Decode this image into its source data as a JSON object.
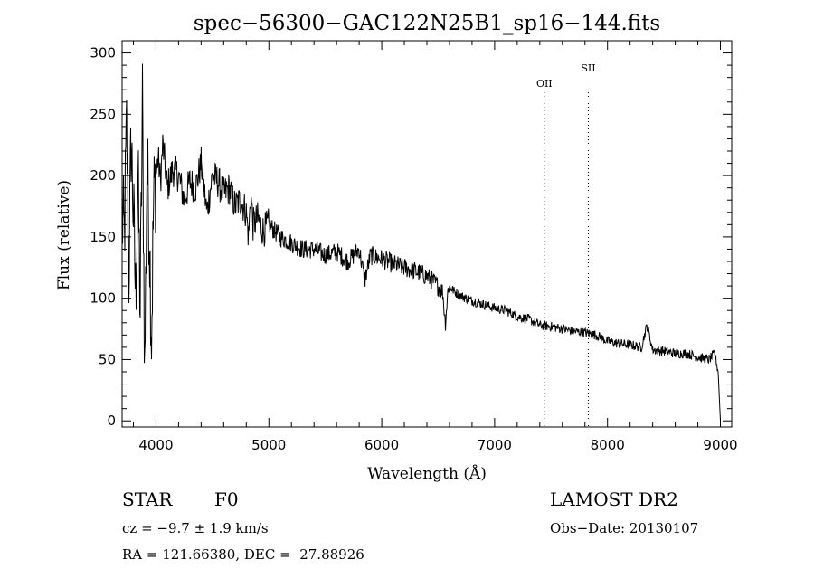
{
  "chart_data": {
    "type": "line",
    "title": "spec−56300−GAC122N25B1_sp16−144.fits",
    "xlabel": "Wavelength (Å)",
    "ylabel": "Flux (relative)",
    "xlim": [
      3700,
      9100
    ],
    "ylim": [
      -5,
      310
    ],
    "xticks": [
      4000,
      5000,
      6000,
      7000,
      8000,
      9000
    ],
    "xtick_labels": [
      "4000",
      "5000",
      "6000",
      "7000",
      "8000",
      "9000"
    ],
    "yticks": [
      0,
      50,
      100,
      150,
      200,
      250,
      300
    ],
    "ytick_labels": [
      "0",
      "50",
      "100",
      "150",
      "200",
      "250",
      "300"
    ],
    "line_markers": [
      {
        "label": "OII",
        "wavelength": 7440
      },
      {
        "label": "SII",
        "wavelength": 7830
      }
    ],
    "series": [
      {
        "name": "flux",
        "x": [
          3700,
          3720,
          3740,
          3760,
          3780,
          3800,
          3820,
          3840,
          3860,
          3880,
          3900,
          3920,
          3940,
          3960,
          3980,
          4000,
          4020,
          4040,
          4060,
          4080,
          4100,
          4150,
          4200,
          4250,
          4300,
          4350,
          4400,
          4450,
          4500,
          4550,
          4600,
          4650,
          4700,
          4750,
          4800,
          4820,
          4840,
          4860,
          4900,
          4950,
          5000,
          5100,
          5200,
          5300,
          5400,
          5500,
          5600,
          5700,
          5800,
          5850,
          5900,
          6000,
          6100,
          6200,
          6300,
          6400,
          6500,
          6540,
          6563,
          6590,
          6650,
          6700,
          6800,
          6900,
          7000,
          7100,
          7200,
          7300,
          7400,
          7500,
          7600,
          7700,
          7800,
          7900,
          8000,
          8100,
          8200,
          8300,
          8350,
          8400,
          8500,
          8600,
          8700,
          8800,
          8900,
          8950,
          8980,
          9000
        ],
        "y": [
          165,
          150,
          240,
          120,
          230,
          170,
          100,
          200,
          90,
          260,
          40,
          210,
          160,
          70,
          180,
          200,
          215,
          195,
          225,
          210,
          190,
          205,
          200,
          180,
          195,
          190,
          210,
          170,
          200,
          195,
          185,
          190,
          175,
          180,
          170,
          150,
          185,
          160,
          165,
          155,
          160,
          150,
          145,
          140,
          140,
          135,
          138,
          130,
          140,
          115,
          135,
          132,
          128,
          125,
          122,
          118,
          110,
          105,
          80,
          110,
          105,
          102,
          98,
          95,
          92,
          90,
          85,
          83,
          78,
          77,
          75,
          73,
          72,
          70,
          65,
          63,
          62,
          60,
          78,
          58,
          57,
          55,
          55,
          52,
          50,
          55,
          40,
          0
        ]
      }
    ]
  },
  "info": {
    "object_class": "STAR",
    "subclass": "F0",
    "redshift": "cz = −9.7 ± 1.9 km/s",
    "coords": "RA = 121.66380, DEC =  27.88926",
    "survey": "LAMOST DR2",
    "obs_date": "Obs−Date: 20130107"
  }
}
